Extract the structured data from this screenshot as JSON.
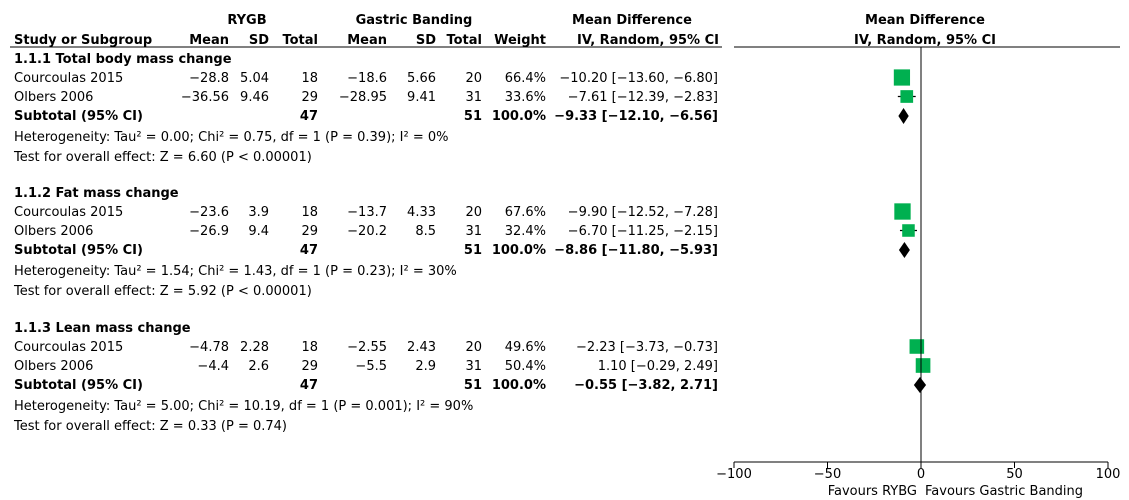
{
  "header": {
    "group1": "RYGB",
    "group2": "Gastric Banding",
    "md_title": "Mean Difference",
    "md_method": "IV, Random, 95% CI",
    "plot_title": "Mean Difference",
    "plot_method": "IV, Random, 95% CI",
    "col_study": "Study or Subgroup",
    "col_mean1": "Mean",
    "col_sd1": "SD",
    "col_total1": "Total",
    "col_mean2": "Mean",
    "col_sd2": "SD",
    "col_total2": "Total",
    "col_weight": "Weight"
  },
  "subgroups": [
    {
      "title": "1.1.1 Total body mass change",
      "studies": [
        {
          "name": "Courcoulas 2015",
          "mean1": "−28.8",
          "sd1": "5.04",
          "n1": "18",
          "mean2": "−18.6",
          "sd2": "5.66",
          "n2": "20",
          "weight": "66.4%",
          "ci_text": "−10.20 [−13.60, −6.80]"
        },
        {
          "name": "Olbers 2006",
          "mean1": "−36.56",
          "sd1": "9.46",
          "n1": "29",
          "mean2": "−28.95",
          "sd2": "9.41",
          "n2": "31",
          "weight": "33.6%",
          "ci_text": "−7.61 [−12.39, −2.83]"
        }
      ],
      "subtotal": {
        "label": "Subtotal (95% CI)",
        "n1": "47",
        "n2": "51",
        "weight": "100.0%",
        "ci_text": "−9.33 [−12.10, −6.56]"
      },
      "heterogeneity": "Heterogeneity: Tau² = 0.00; Chi² = 0.75, df = 1 (P = 0.39); I² = 0%",
      "overall": "Test for overall effect: Z = 6.60 (P < 0.00001)"
    },
    {
      "title": "1.1.2 Fat mass change",
      "studies": [
        {
          "name": "Courcoulas 2015",
          "mean1": "−23.6",
          "sd1": "3.9",
          "n1": "18",
          "mean2": "−13.7",
          "sd2": "4.33",
          "n2": "20",
          "weight": "67.6%",
          "ci_text": "−9.90 [−12.52, −7.28]"
        },
        {
          "name": "Olbers 2006",
          "mean1": "−26.9",
          "sd1": "9.4",
          "n1": "29",
          "mean2": "−20.2",
          "sd2": "8.5",
          "n2": "31",
          "weight": "32.4%",
          "ci_text": "−6.70 [−11.25, −2.15]"
        }
      ],
      "subtotal": {
        "label": "Subtotal (95% CI)",
        "n1": "47",
        "n2": "51",
        "weight": "100.0%",
        "ci_text": "−8.86 [−11.80, −5.93]"
      },
      "heterogeneity": "Heterogeneity: Tau² = 1.54; Chi² = 1.43, df = 1 (P = 0.23); I² = 30%",
      "overall": "Test for overall effect: Z = 5.92 (P < 0.00001)"
    },
    {
      "title": "1.1.3 Lean mass change",
      "studies": [
        {
          "name": "Courcoulas 2015",
          "mean1": "−4.78",
          "sd1": "2.28",
          "n1": "18",
          "mean2": "−2.55",
          "sd2": "2.43",
          "n2": "20",
          "weight": "49.6%",
          "ci_text": "−2.23 [−3.73, −0.73]"
        },
        {
          "name": "Olbers 2006",
          "mean1": "−4.4",
          "sd1": "2.6",
          "n1": "29",
          "mean2": "−5.5",
          "sd2": "2.9",
          "n2": "31",
          "weight": "50.4%",
          "ci_text": "1.10 [−0.29, 2.49]"
        }
      ],
      "subtotal": {
        "label": "Subtotal (95% CI)",
        "n1": "47",
        "n2": "51",
        "weight": "100.0%",
        "ci_text": "−0.55 [−3.82, 2.71]"
      },
      "heterogeneity": "Heterogeneity: Tau² = 5.00; Chi² = 10.19, df = 1 (P = 0.001); I² = 90%",
      "overall": "Test for overall effect: Z = 0.33 (P = 0.74)"
    }
  ],
  "chart_data": {
    "type": "forest",
    "xlim": [
      -100,
      100
    ],
    "ticks": [
      -100,
      -50,
      0,
      50,
      100
    ],
    "tick_labels": [
      "−100",
      "−50",
      "0",
      "50",
      "100"
    ],
    "favours_left": "Favours RYBG",
    "favours_right": "Favours Gastric Banding",
    "marker_color": "#00b050",
    "diamond_color": "#000000",
    "studies": [
      {
        "group": 0,
        "name": "Courcoulas 2015",
        "md": -10.2,
        "lo": -13.6,
        "hi": -6.8,
        "weight": 66.4
      },
      {
        "group": 0,
        "name": "Olbers 2006",
        "md": -7.61,
        "lo": -12.39,
        "hi": -2.83,
        "weight": 33.6
      },
      {
        "group": 1,
        "name": "Courcoulas 2015",
        "md": -9.9,
        "lo": -12.52,
        "hi": -7.28,
        "weight": 67.6
      },
      {
        "group": 1,
        "name": "Olbers 2006",
        "md": -6.7,
        "lo": -11.25,
        "hi": -2.15,
        "weight": 32.4
      },
      {
        "group": 2,
        "name": "Courcoulas 2015",
        "md": -2.23,
        "lo": -3.73,
        "hi": -0.73,
        "weight": 49.6
      },
      {
        "group": 2,
        "name": "Olbers 2006",
        "md": 1.1,
        "lo": -0.29,
        "hi": 2.49,
        "weight": 50.4
      }
    ],
    "subtotals": [
      {
        "group": 0,
        "md": -9.33,
        "lo": -12.1,
        "hi": -6.56
      },
      {
        "group": 1,
        "md": -8.86,
        "lo": -11.8,
        "hi": -5.93
      },
      {
        "group": 2,
        "md": -0.55,
        "lo": -3.82,
        "hi": 2.71
      }
    ]
  }
}
